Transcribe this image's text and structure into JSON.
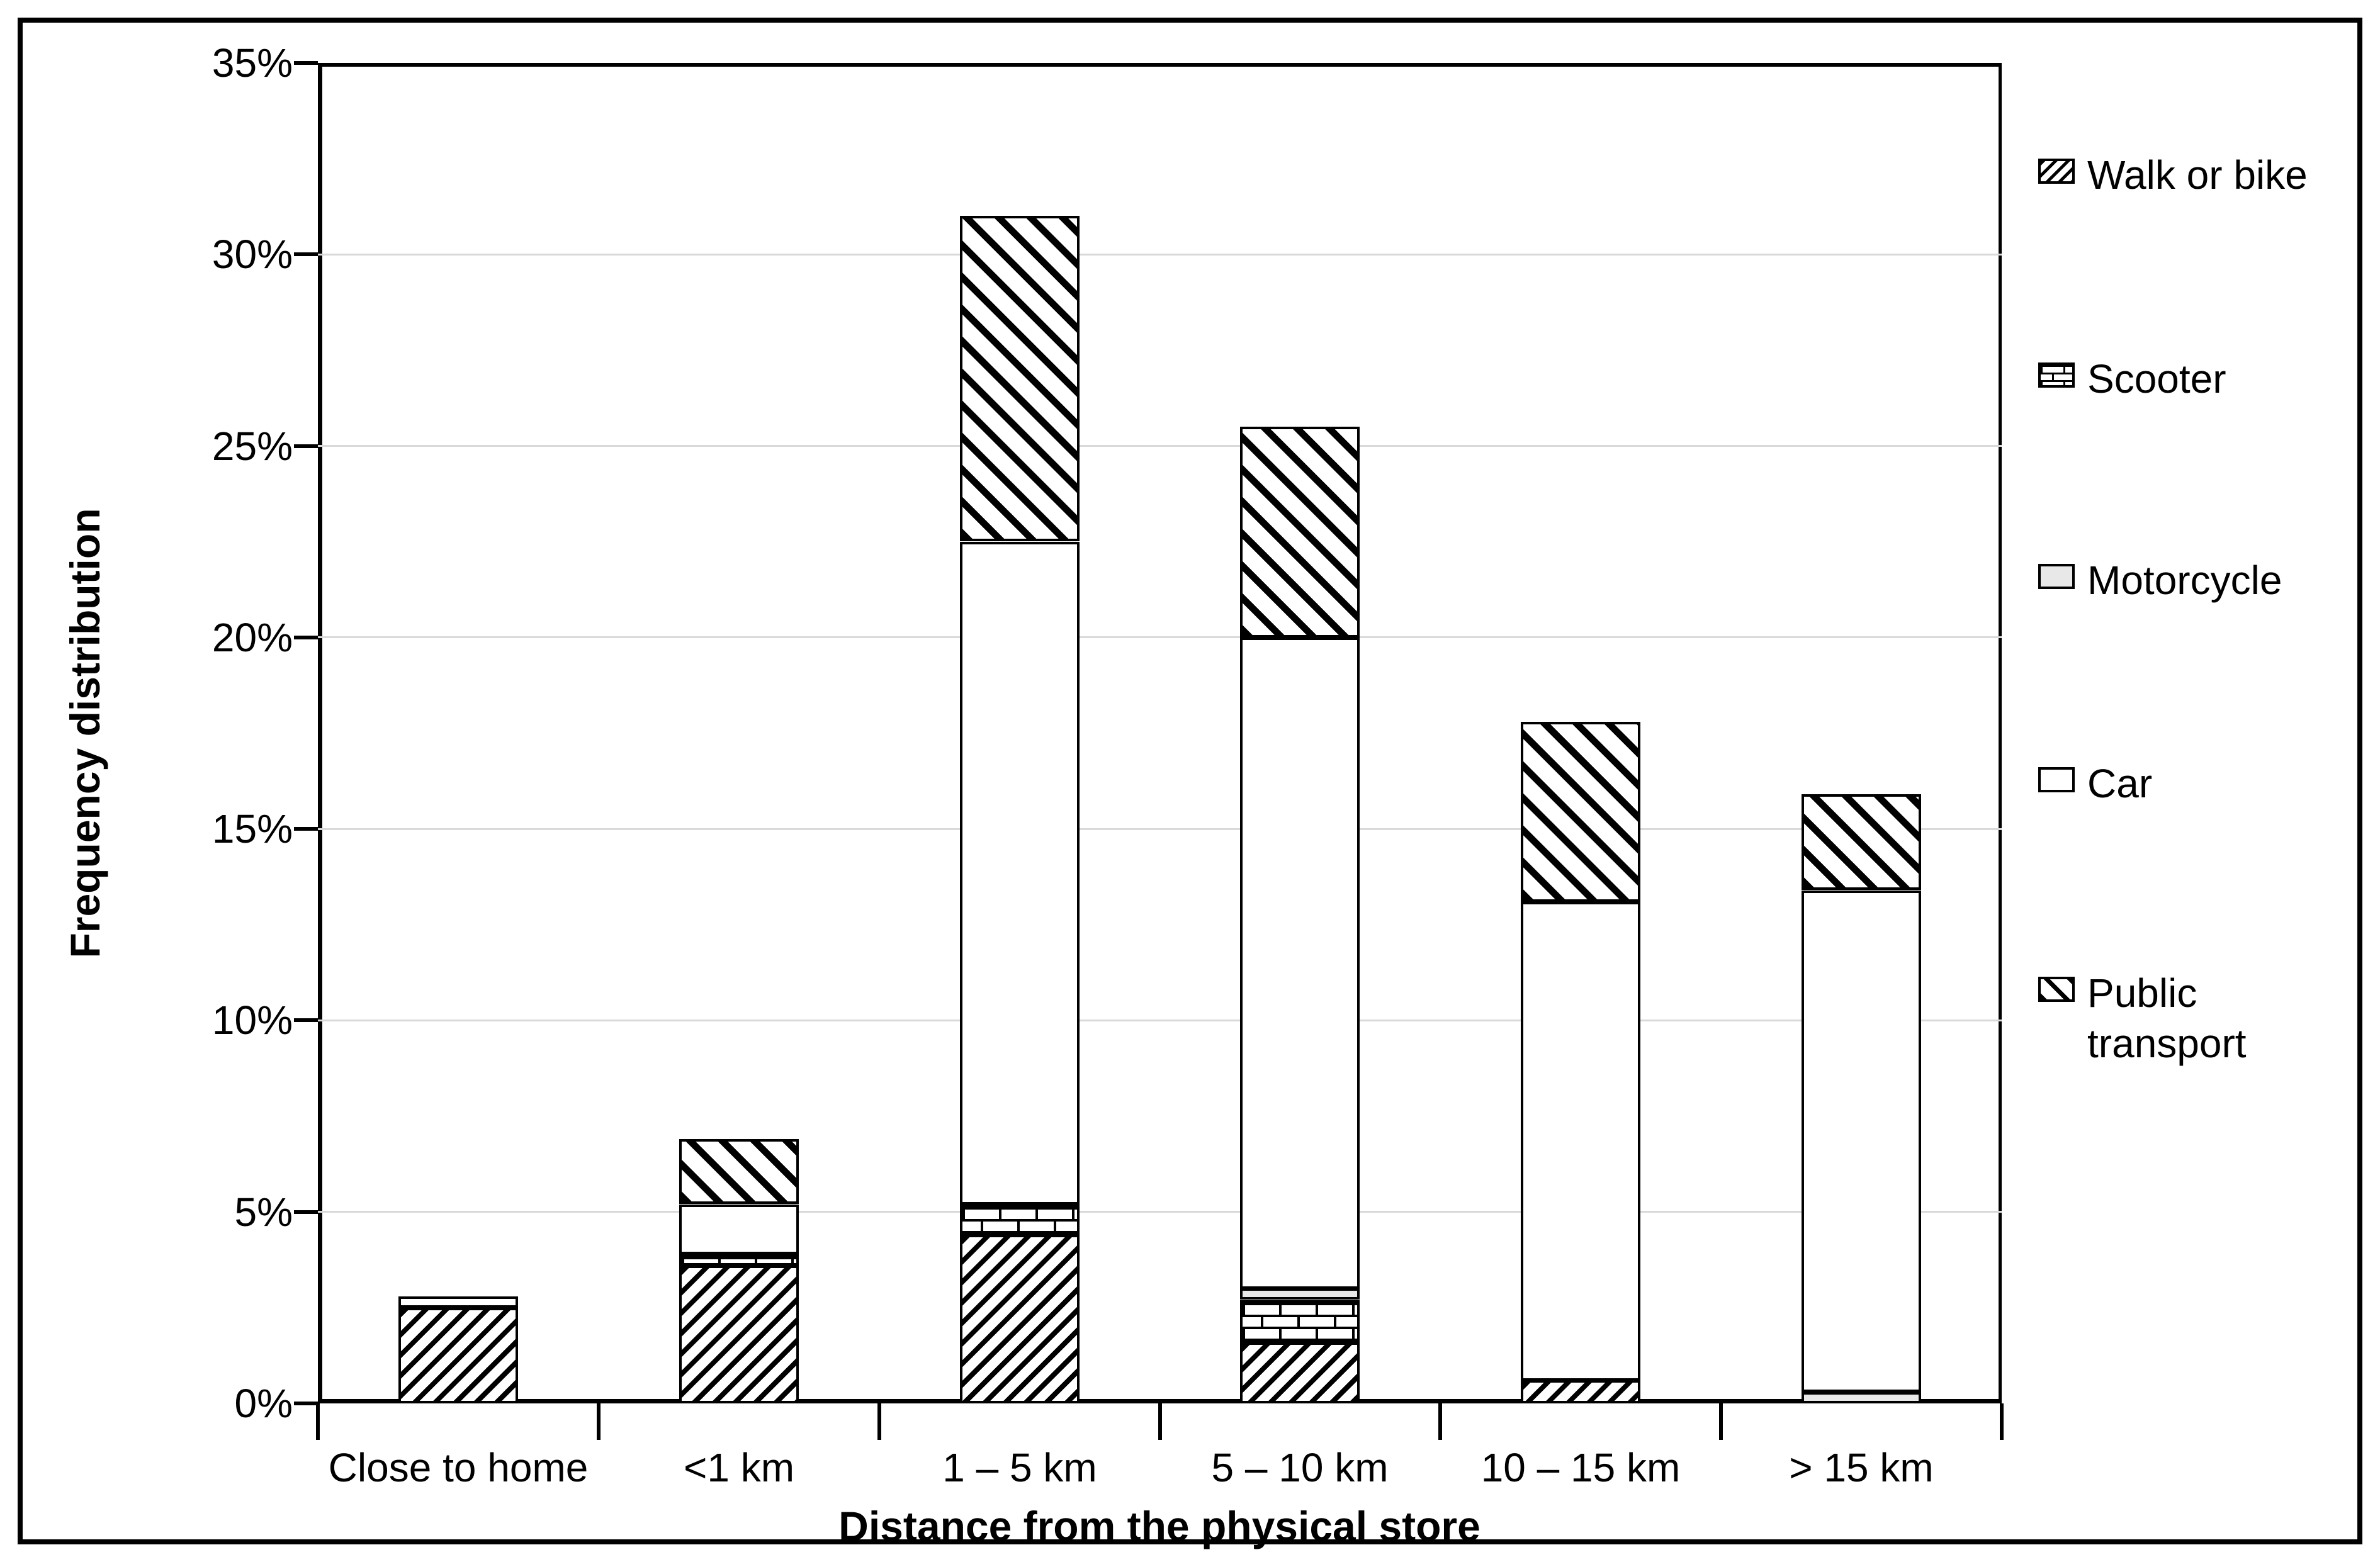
{
  "figure": {
    "background": "#ffffff",
    "border_color": "#000000"
  },
  "chart_data": {
    "type": "bar",
    "stacked": true,
    "title": "",
    "xlabel": "Distance from the physical store",
    "ylabel": "Frequency distribution",
    "categories": [
      "Close to home",
      "<1 km",
      "1 – 5 km",
      "5 – 10 km",
      "10 – 15 km",
      "> 15 km"
    ],
    "series": [
      {
        "name": "Walk or bike",
        "pattern": "hatch-forward",
        "values": [
          2.5,
          3.6,
          4.4,
          1.6,
          0.6,
          0
        ]
      },
      {
        "name": "Scooter",
        "pattern": "brick",
        "values": [
          0,
          0.3,
          0.8,
          1.1,
          0,
          0
        ]
      },
      {
        "name": "Motorcycle",
        "pattern": "solid-gray",
        "color": "#e8e8e8",
        "values": [
          0,
          0,
          0,
          0.3,
          0,
          0.3
        ]
      },
      {
        "name": "Car",
        "pattern": "solid-white",
        "color": "#ffffff",
        "values": [
          0.3,
          1.3,
          17.3,
          17.0,
          12.5,
          13.1
        ]
      },
      {
        "name": "Public transport",
        "pattern": "hatch-back",
        "values": [
          0,
          1.7,
          8.5,
          5.5,
          4.7,
          2.5
        ]
      }
    ],
    "totals": [
      2.8,
      6.9,
      31.0,
      25.5,
      17.8,
      15.9
    ],
    "ylim": [
      0,
      35
    ],
    "ytick_step": 5,
    "ytick_labels": [
      "0%",
      "5%",
      "10%",
      "15%",
      "20%",
      "25%",
      "30%",
      "35%"
    ],
    "grid": "horizontal",
    "gridline_color": "#d9d9d9",
    "legend_position": "right"
  }
}
